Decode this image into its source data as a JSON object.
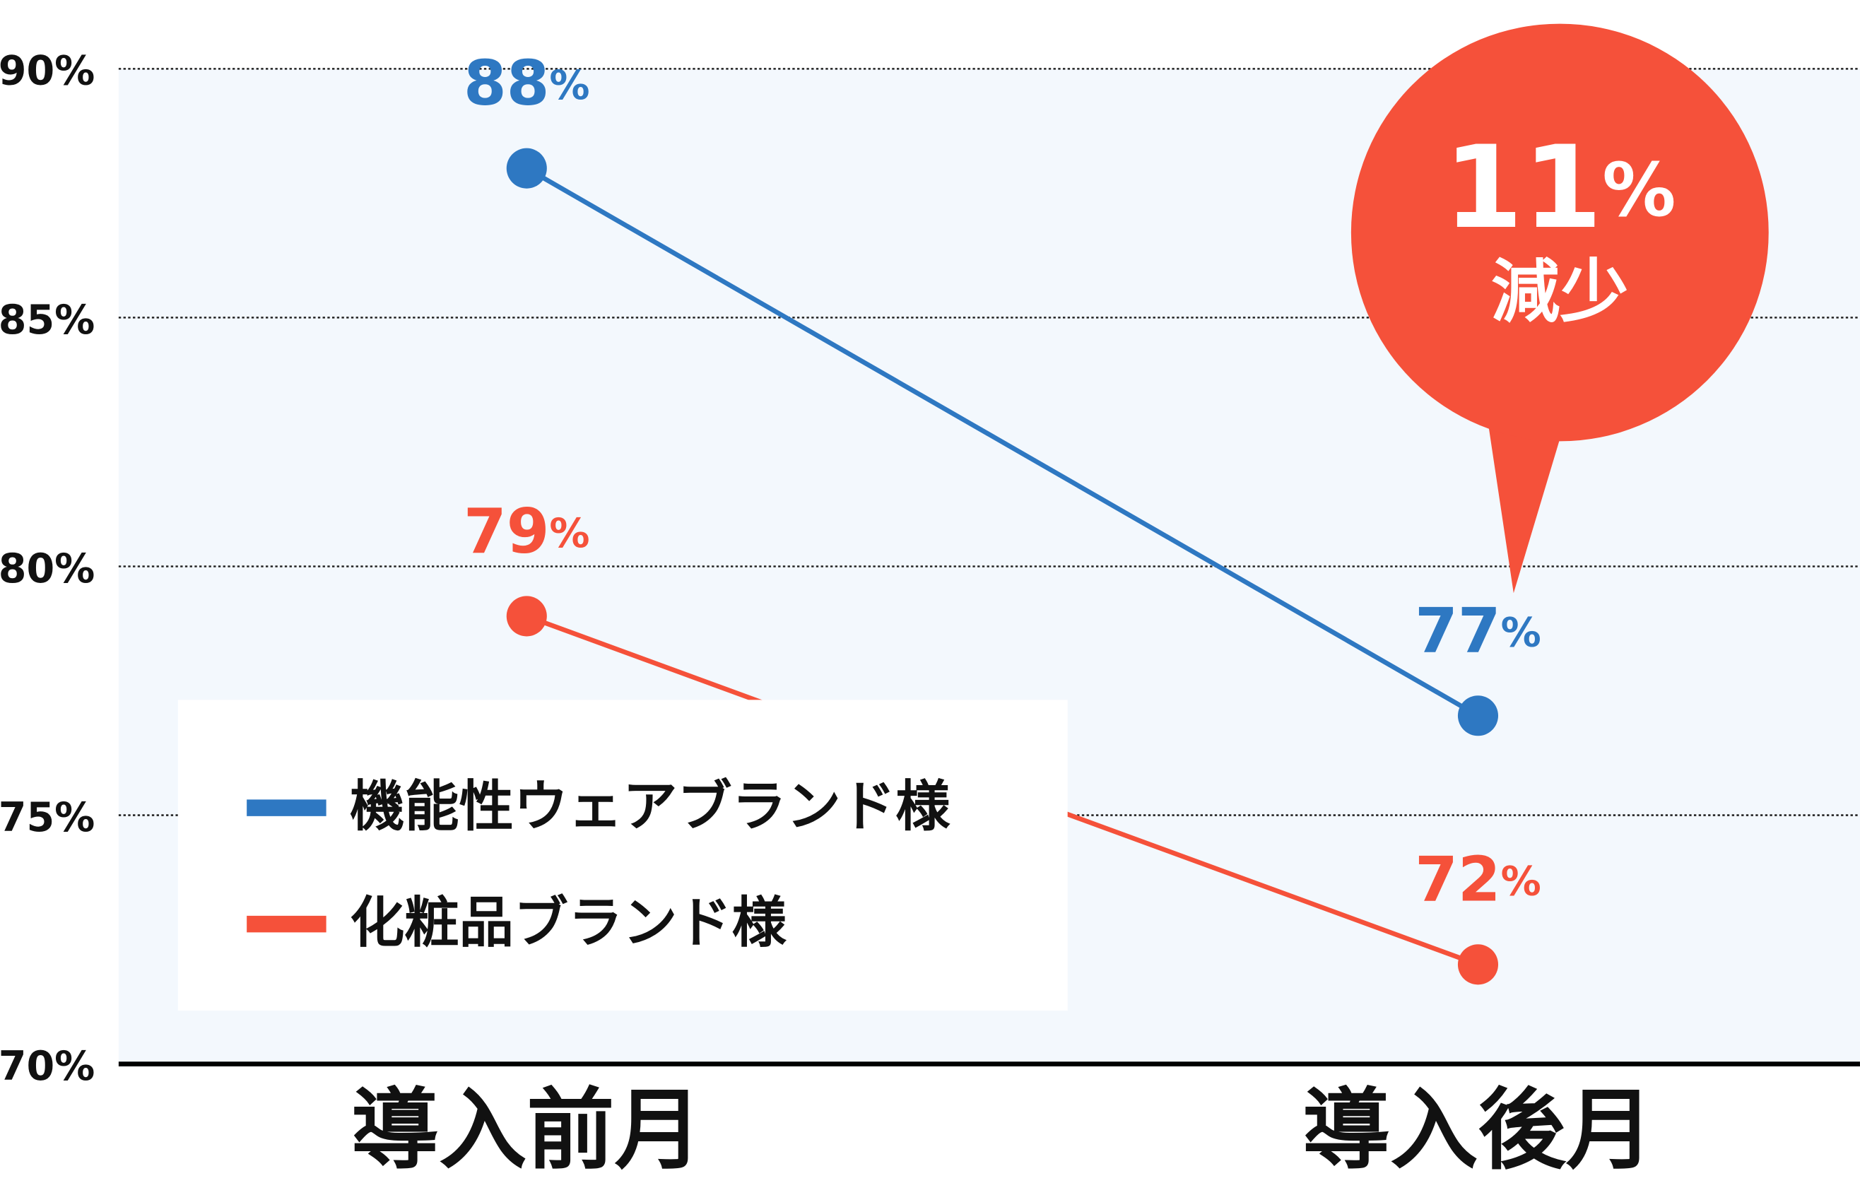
{
  "chart_data": {
    "type": "line",
    "categories": [
      "導入前月",
      "導入後月"
    ],
    "series": [
      {
        "name": "機能性ウェアブランド様",
        "color": "#2e78c2",
        "values": [
          88,
          77
        ],
        "value_labels": [
          "88%",
          "77%"
        ]
      },
      {
        "name": "化粧品ブランド様",
        "color": "#f5513a",
        "values": [
          79,
          72
        ],
        "value_labels": [
          "79%",
          "72%"
        ]
      }
    ],
    "ylim": [
      70,
      90
    ],
    "yticks": [
      {
        "value": 70,
        "label": "70%"
      },
      {
        "value": 75,
        "label": "75%"
      },
      {
        "value": 80,
        "label": "80%"
      },
      {
        "value": 85,
        "label": "85%"
      },
      {
        "value": 90,
        "label": "90%"
      }
    ],
    "grid": true,
    "legend": "bottom-left",
    "annotation": {
      "text": "11%",
      "subtext": "減少",
      "color": "#f5513a"
    }
  }
}
